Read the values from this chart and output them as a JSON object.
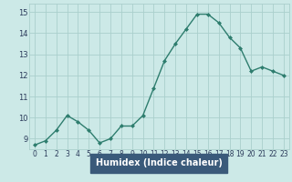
{
  "x": [
    0,
    1,
    2,
    3,
    4,
    5,
    6,
    7,
    8,
    9,
    10,
    11,
    12,
    13,
    14,
    15,
    16,
    17,
    18,
    19,
    20,
    21,
    22,
    23
  ],
  "y": [
    8.7,
    8.9,
    9.4,
    10.1,
    9.8,
    9.4,
    8.8,
    9.0,
    9.6,
    9.6,
    10.1,
    11.4,
    12.7,
    13.5,
    14.2,
    14.9,
    14.9,
    14.5,
    13.8,
    13.3,
    12.2,
    12.4,
    12.2,
    12.0
  ],
  "line_color": "#2e7d6e",
  "marker": "D",
  "marker_size": 2.0,
  "bg_color": "#cce9e7",
  "grid_color": "#aacfcc",
  "xlabel": "Humidex (Indice chaleur)",
  "ylabel": "",
  "xlim": [
    -0.5,
    23.5
  ],
  "ylim": [
    8.5,
    15.4
  ],
  "yticks": [
    9,
    10,
    11,
    12,
    13,
    14,
    15
  ],
  "xticks": [
    0,
    1,
    2,
    3,
    4,
    5,
    6,
    7,
    8,
    9,
    10,
    11,
    12,
    13,
    14,
    15,
    16,
    17,
    18,
    19,
    20,
    21,
    22,
    23
  ],
  "xlabel_color": "#ffffff",
  "xlabel_bg": "#3a5a7a",
  "tick_label_color": "#2a3a5a",
  "line_width": 1.0,
  "tick_fontsize": 5.5,
  "xlabel_fontsize": 7.0
}
